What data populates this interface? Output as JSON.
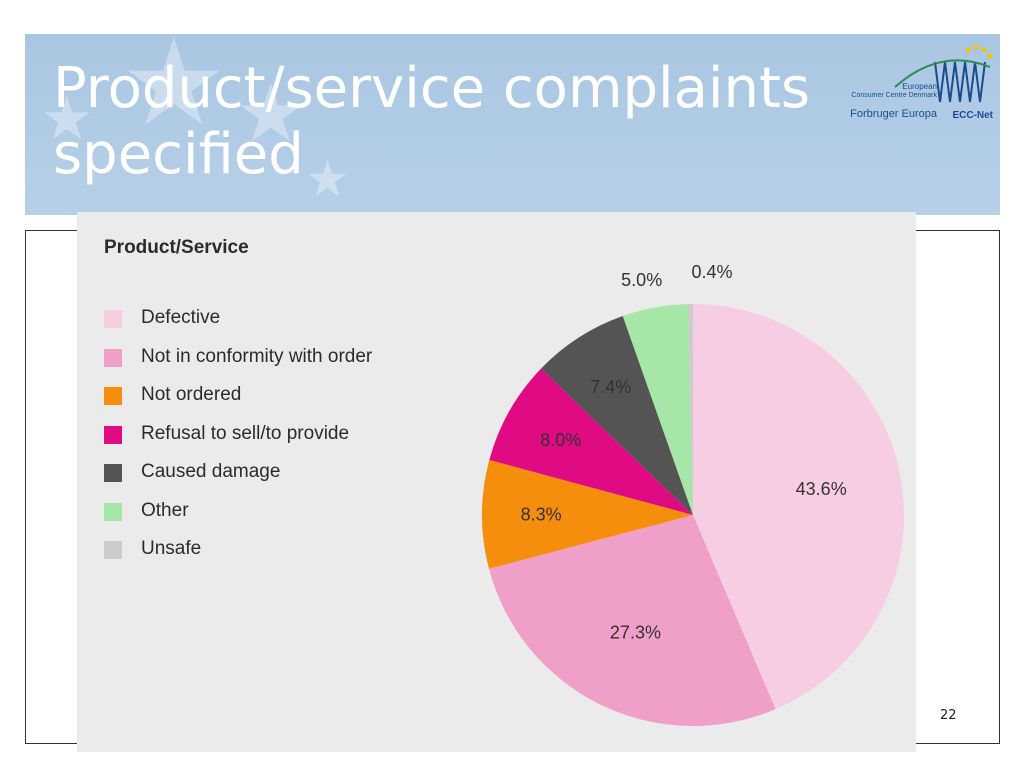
{
  "slide": {
    "title": "Product/service complaints specified",
    "page_number": "22",
    "logo": {
      "line1": "European",
      "line2": "Consumer Centre Denmark",
      "line3": "Forbruger Europa",
      "line4": "ECC-Net",
      "icon": "ecc-net-logo-icon"
    }
  },
  "chart_data": {
    "type": "pie",
    "title": "Product/Service",
    "legend_position": "left",
    "slices": [
      {
        "name": "Defective",
        "value": 43.6,
        "label": "43.6%",
        "color": "#f7cde3"
      },
      {
        "name": "Not in conformity with order",
        "value": 27.3,
        "label": "27.3%",
        "color": "#f09fc8"
      },
      {
        "name": "Not ordered",
        "value": 8.3,
        "label": "8.3%",
        "color": "#f58d0d"
      },
      {
        "name": "Refusal to sell/to provide",
        "value": 8.0,
        "label": "8.0%",
        "color": "#e00a82"
      },
      {
        "name": "Caused damage",
        "value": 7.4,
        "label": "7.4%",
        "color": "#545454"
      },
      {
        "name": "Other",
        "value": 5.0,
        "label": "5.0%",
        "color": "#a6e6a6"
      },
      {
        "name": "Unsafe",
        "value": 0.4,
        "label": "0.4%",
        "color": "#cccccc"
      }
    ]
  }
}
